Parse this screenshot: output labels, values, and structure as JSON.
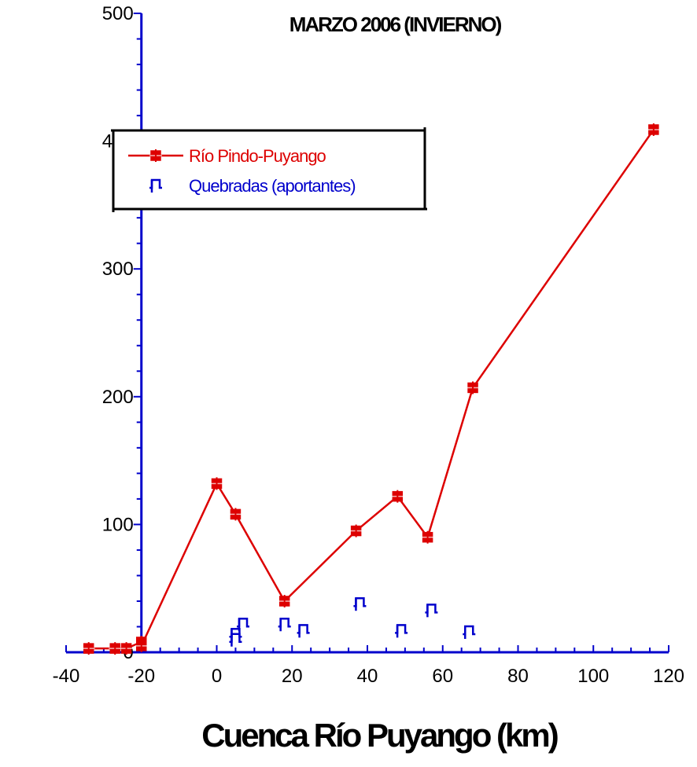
{
  "chart_data": {
    "type": "scatter",
    "title": "MARZO 2006 (INVIERNO)",
    "xlabel": "Cuenca Río Puyango (km)",
    "ylabel": "",
    "xlim": [
      -40,
      120
    ],
    "ylim": [
      0,
      500
    ],
    "x_ticks": [
      -40,
      -20,
      0,
      20,
      40,
      60,
      80,
      100,
      120
    ],
    "y_ticks": [
      0,
      100,
      200,
      300,
      400,
      500
    ],
    "grid": false,
    "legend_position": "upper-left",
    "colors": {
      "axis": "#0000cc",
      "river": "#dd0000",
      "streams": "#0000cc"
    },
    "series": [
      {
        "name": "Río Pindo-Puyango",
        "style": "line-with-markers",
        "color": "#dd0000",
        "points": [
          {
            "x": -34,
            "y": 3
          },
          {
            "x": -27,
            "y": 3
          },
          {
            "x": -24,
            "y": 3
          },
          {
            "x": -20,
            "y": 8
          },
          {
            "x": -20,
            "y": 5
          },
          {
            "x": 0,
            "y": 132
          },
          {
            "x": 5,
            "y": 108
          },
          {
            "x": 18,
            "y": 40
          },
          {
            "x": 37,
            "y": 95
          },
          {
            "x": 48,
            "y": 122
          },
          {
            "x": 56,
            "y": 90
          },
          {
            "x": 68,
            "y": 207
          },
          {
            "x": 116,
            "y": 409
          }
        ]
      },
      {
        "name": "Quebradas (aportantes)",
        "style": "markers-only",
        "color": "#0000cc",
        "points": [
          {
            "x": 5,
            "y": 10
          },
          {
            "x": 5,
            "y": 14
          },
          {
            "x": 7,
            "y": 22
          },
          {
            "x": 18,
            "y": 22
          },
          {
            "x": 23,
            "y": 17
          },
          {
            "x": 38,
            "y": 38
          },
          {
            "x": 49,
            "y": 17
          },
          {
            "x": 57,
            "y": 33
          },
          {
            "x": 67,
            "y": 16
          }
        ]
      }
    ]
  }
}
